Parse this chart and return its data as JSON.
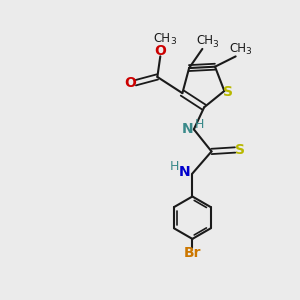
{
  "background_color": "#ebebeb",
  "bond_color": "#1a1a1a",
  "S_color": "#b8b800",
  "N_color": "#3a8a8a",
  "O_color": "#cc0000",
  "Br_color": "#cc7700",
  "figsize": [
    3.0,
    3.0
  ],
  "dpi": 100,
  "xlim": [
    0,
    10
  ],
  "ylim": [
    0,
    10
  ]
}
